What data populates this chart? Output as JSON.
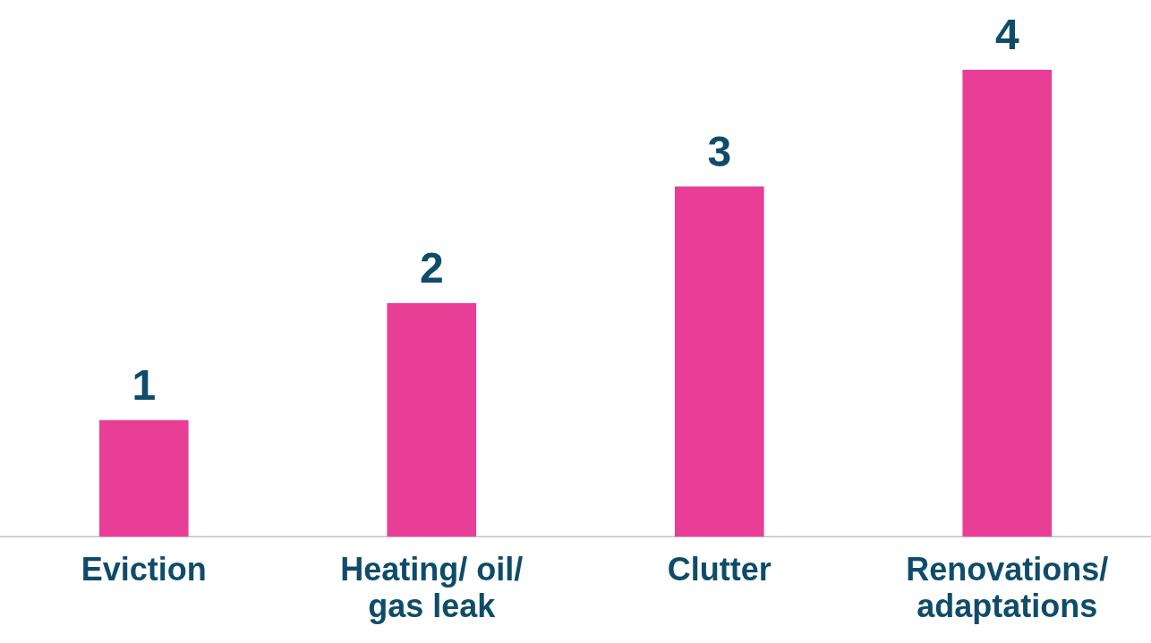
{
  "chart_data": {
    "type": "bar",
    "categories": [
      "Eviction",
      "Heating/ oil/ gas leak",
      "Clutter",
      "Renovations/ adaptations"
    ],
    "values": [
      1,
      2,
      3,
      4
    ],
    "color": "#e83e96",
    "data_labels": true,
    "grid": false,
    "legend": false
  }
}
